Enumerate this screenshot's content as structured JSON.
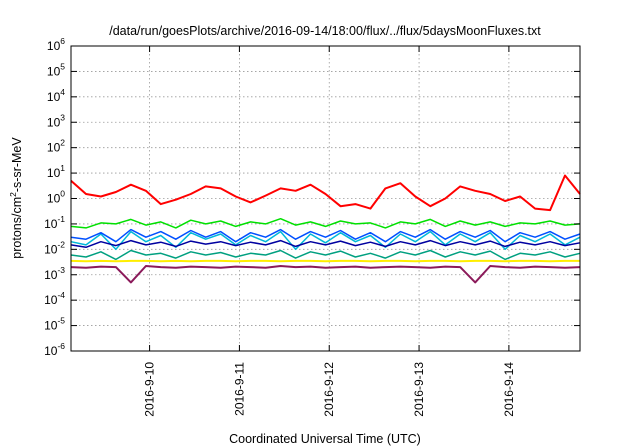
{
  "chart_data": {
    "type": "line",
    "title": "/data/run/goesPlots/archive/2016-09-14/18:00/flux/../flux/5daysMoonFluxes.txt",
    "xlabel": "Coordinated Universal Time (UTC)",
    "ylabel": {
      "pre": "protons/cm",
      "sup": "2",
      "post": "-s-sr-MeV"
    },
    "y_scale": "log",
    "ylim": [
      1e-06,
      1000000.0
    ],
    "y_ticks": [
      {
        "base": "10",
        "exp": "-6",
        "value": 1e-06
      },
      {
        "base": "10",
        "exp": "-5",
        "value": 1e-05
      },
      {
        "base": "10",
        "exp": "-4",
        "value": 0.0001
      },
      {
        "base": "10",
        "exp": "-3",
        "value": 0.001
      },
      {
        "base": "10",
        "exp": "-2",
        "value": 0.01
      },
      {
        "base": "10",
        "exp": "-1",
        "value": 0.1
      },
      {
        "base": "10",
        "exp": "0",
        "value": 1
      },
      {
        "base": "10",
        "exp": "1",
        "value": 10
      },
      {
        "base": "10",
        "exp": "2",
        "value": 100
      },
      {
        "base": "10",
        "exp": "3",
        "value": 1000
      },
      {
        "base": "10",
        "exp": "4",
        "value": 10000
      },
      {
        "base": "10",
        "exp": "5",
        "value": 100000
      },
      {
        "base": "10",
        "exp": "6",
        "value": 1000000
      }
    ],
    "xlim": [
      "2016-09-09T03:00",
      "2016-09-14T19:00"
    ],
    "x_ticks": [
      {
        "label": "2016-9-10",
        "value": "2016-09-10T00:00"
      },
      {
        "label": "2016-9-11",
        "value": "2016-09-11T00:00"
      },
      {
        "label": "2016-9-12",
        "value": "2016-09-12T00:00"
      },
      {
        "label": "2016-9-13",
        "value": "2016-09-13T00:00"
      },
      {
        "label": "2016-9-14",
        "value": "2016-09-14T00:00"
      }
    ],
    "grid": true,
    "x": [
      "2016-09-09T03:00",
      "2016-09-09T07:00",
      "2016-09-09T11:00",
      "2016-09-09T15:00",
      "2016-09-09T19:00",
      "2016-09-09T23:00",
      "2016-09-10T03:00",
      "2016-09-10T07:00",
      "2016-09-10T11:00",
      "2016-09-10T15:00",
      "2016-09-10T19:00",
      "2016-09-10T23:00",
      "2016-09-11T03:00",
      "2016-09-11T07:00",
      "2016-09-11T11:00",
      "2016-09-11T15:00",
      "2016-09-11T19:00",
      "2016-09-11T23:00",
      "2016-09-12T03:00",
      "2016-09-12T07:00",
      "2016-09-12T11:00",
      "2016-09-12T15:00",
      "2016-09-12T19:00",
      "2016-09-12T23:00",
      "2016-09-13T03:00",
      "2016-09-13T07:00",
      "2016-09-13T11:00",
      "2016-09-13T15:00",
      "2016-09-13T19:00",
      "2016-09-13T23:00",
      "2016-09-14T03:00",
      "2016-09-14T07:00",
      "2016-09-14T11:00",
      "2016-09-14T15:00",
      "2016-09-14T19:00"
    ],
    "series": [
      {
        "color": "#ff0000",
        "width": 2,
        "values": [
          5,
          1.5,
          1.2,
          1.8,
          3.5,
          2,
          0.6,
          0.9,
          1.5,
          3,
          2.5,
          1.2,
          0.7,
          1.3,
          2.5,
          2,
          3.5,
          1.5,
          0.5,
          0.6,
          0.4,
          2.5,
          4,
          1.2,
          0.5,
          1,
          3,
          2,
          1.5,
          0.8,
          1.2,
          0.4,
          0.35,
          8,
          1.5
        ]
      },
      {
        "color": "#00e000",
        "width": 1.5,
        "values": [
          0.08,
          0.07,
          0.11,
          0.1,
          0.15,
          0.09,
          0.12,
          0.07,
          0.14,
          0.1,
          0.13,
          0.08,
          0.12,
          0.1,
          0.16,
          0.09,
          0.12,
          0.08,
          0.13,
          0.1,
          0.11,
          0.07,
          0.12,
          0.1,
          0.15,
          0.08,
          0.13,
          0.09,
          0.12,
          0.08,
          0.11,
          0.1,
          0.13,
          0.09,
          0.1
        ]
      },
      {
        "color": "#00b8d8",
        "width": 1.5,
        "values": [
          0.02,
          0.015,
          0.04,
          0.01,
          0.05,
          0.02,
          0.035,
          0.012,
          0.045,
          0.025,
          0.04,
          0.015,
          0.035,
          0.02,
          0.05,
          0.01,
          0.04,
          0.018,
          0.045,
          0.02,
          0.035,
          0.012,
          0.04,
          0.02,
          0.05,
          0.015,
          0.04,
          0.02,
          0.045,
          0.01,
          0.035,
          0.02,
          0.04,
          0.015,
          0.03
        ]
      },
      {
        "color": "#0050ff",
        "width": 1.5,
        "values": [
          0.03,
          0.025,
          0.045,
          0.02,
          0.06,
          0.03,
          0.05,
          0.025,
          0.055,
          0.03,
          0.05,
          0.02,
          0.045,
          0.03,
          0.06,
          0.025,
          0.05,
          0.03,
          0.055,
          0.025,
          0.045,
          0.02,
          0.05,
          0.03,
          0.06,
          0.025,
          0.05,
          0.03,
          0.055,
          0.02,
          0.045,
          0.03,
          0.05,
          0.025,
          0.04
        ]
      },
      {
        "color": "#0000a0",
        "width": 1.5,
        "values": [
          0.015,
          0.012,
          0.02,
          0.014,
          0.022,
          0.015,
          0.019,
          0.013,
          0.021,
          0.016,
          0.02,
          0.014,
          0.019,
          0.015,
          0.022,
          0.013,
          0.02,
          0.015,
          0.021,
          0.014,
          0.019,
          0.013,
          0.02,
          0.015,
          0.022,
          0.014,
          0.02,
          0.015,
          0.021,
          0.013,
          0.019,
          0.015,
          0.02,
          0.014,
          0.018
        ]
      },
      {
        "color": "#00a080",
        "width": 1.5,
        "values": [
          0.006,
          0.005,
          0.008,
          0.004,
          0.009,
          0.006,
          0.007,
          0.0045,
          0.008,
          0.006,
          0.0075,
          0.005,
          0.007,
          0.006,
          0.009,
          0.0045,
          0.008,
          0.006,
          0.0085,
          0.005,
          0.007,
          0.0045,
          0.008,
          0.006,
          0.009,
          0.005,
          0.008,
          0.006,
          0.0085,
          0.004,
          0.007,
          0.006,
          0.008,
          0.005,
          0.007
        ]
      },
      {
        "color": "#ffee00",
        "width": 2,
        "values": [
          0.0035,
          0.0034,
          0.0035,
          0.0034,
          0.0035,
          0.0035,
          0.0034,
          0.0035,
          0.0034,
          0.0035,
          0.0035,
          0.0034,
          0.0035,
          0.0035,
          0.0034,
          0.0035,
          0.0035,
          0.0034,
          0.0035,
          0.0035,
          0.0034,
          0.0035,
          0.0035,
          0.0034,
          0.0035,
          0.0035,
          0.0034,
          0.0035,
          0.0035,
          0.0034,
          0.0035,
          0.0035,
          0.0034,
          0.0035,
          0.0035
        ]
      },
      {
        "color": "#8b1a5a",
        "width": 2,
        "values": [
          0.002,
          0.0019,
          0.0021,
          0.002,
          0.0005,
          0.0022,
          0.002,
          0.0019,
          0.0021,
          0.002,
          0.0019,
          0.0021,
          0.002,
          0.0019,
          0.0022,
          0.002,
          0.0021,
          0.0019,
          0.002,
          0.0021,
          0.0019,
          0.002,
          0.0021,
          0.002,
          0.0019,
          0.0021,
          0.002,
          0.0005,
          0.0022,
          0.002,
          0.0019,
          0.0021,
          0.002,
          0.0019,
          0.002
        ]
      }
    ]
  }
}
